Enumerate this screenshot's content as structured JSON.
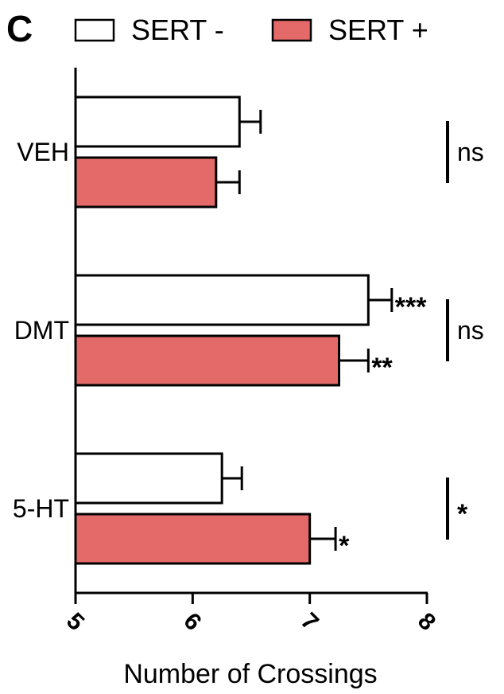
{
  "panel_letter": "C",
  "colors": {
    "sert_neg": "#ffffff",
    "sert_pos": "#e46a6a",
    "stroke": "#000000"
  },
  "chart_data": {
    "type": "bar",
    "orientation": "horizontal",
    "categories": [
      "VEH",
      "DMT",
      "5-HT"
    ],
    "series": [
      {
        "name": "SERT -",
        "values": [
          6.4,
          7.5,
          6.25
        ],
        "errors": [
          0.18,
          0.2,
          0.17
        ],
        "stars": [
          "",
          "***",
          ""
        ]
      },
      {
        "name": "SERT +",
        "values": [
          6.2,
          7.25,
          7.0
        ],
        "errors": [
          0.2,
          0.25,
          0.22
        ],
        "stars": [
          "",
          "**",
          "*"
        ]
      }
    ],
    "comparisons": [
      "ns",
      "ns",
      "*"
    ],
    "xlabel": "Number of Crossings",
    "xlim": [
      5,
      8
    ],
    "xticks": [
      "5",
      "6",
      "7",
      "8"
    ],
    "legend": "top",
    "grid": false
  }
}
